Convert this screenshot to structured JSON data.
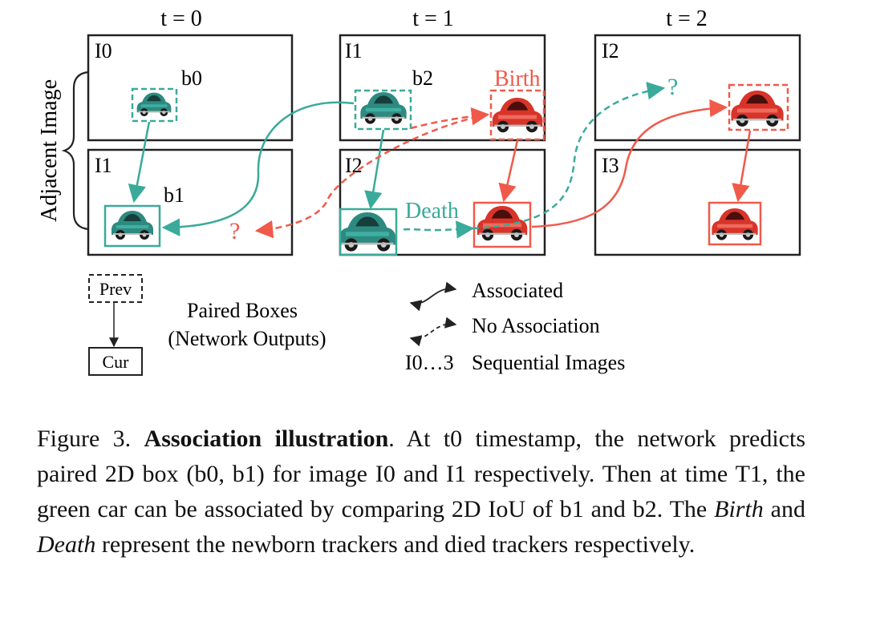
{
  "timesteps": [
    "t = 0",
    "t = 1",
    "t = 2"
  ],
  "side_label": "Adjacent Image",
  "panels": {
    "c0_top": "I0",
    "c0_bot": "I1",
    "c1_top": "I1",
    "c1_bot": "I2",
    "c2_top": "I2",
    "c2_bot": "I3"
  },
  "boxes": {
    "b0": "b0",
    "b1": "b1",
    "b2": "b2"
  },
  "annotations": {
    "birth": "Birth",
    "death": "Death",
    "q1": "?",
    "q2": "?"
  },
  "colors": {
    "teal": "#3aaa9a",
    "red": "#f05a4a",
    "black": "#222222"
  },
  "legend": {
    "prev": "Prev",
    "cur": "Cur",
    "paired_1": "Paired Boxes",
    "paired_2": "(Network Outputs)",
    "associated": "Associated",
    "no_association": "No Association",
    "seq_key": "I0…3",
    "seq_label": "Sequential Images"
  },
  "caption": {
    "prefix": "Figure 3. ",
    "bold": "Association illustration",
    "part1": ". At t0 timestamp, the network predicts paired 2D box (b0, b1) for image I0 and I1 respectively. Then at time T1, the green car can be associated by comparing 2D IoU of b1 and b2. The ",
    "birth": "Birth",
    "and": " and ",
    "death": "Death",
    "part2": " represent the newborn trackers and died trackers respectively."
  }
}
